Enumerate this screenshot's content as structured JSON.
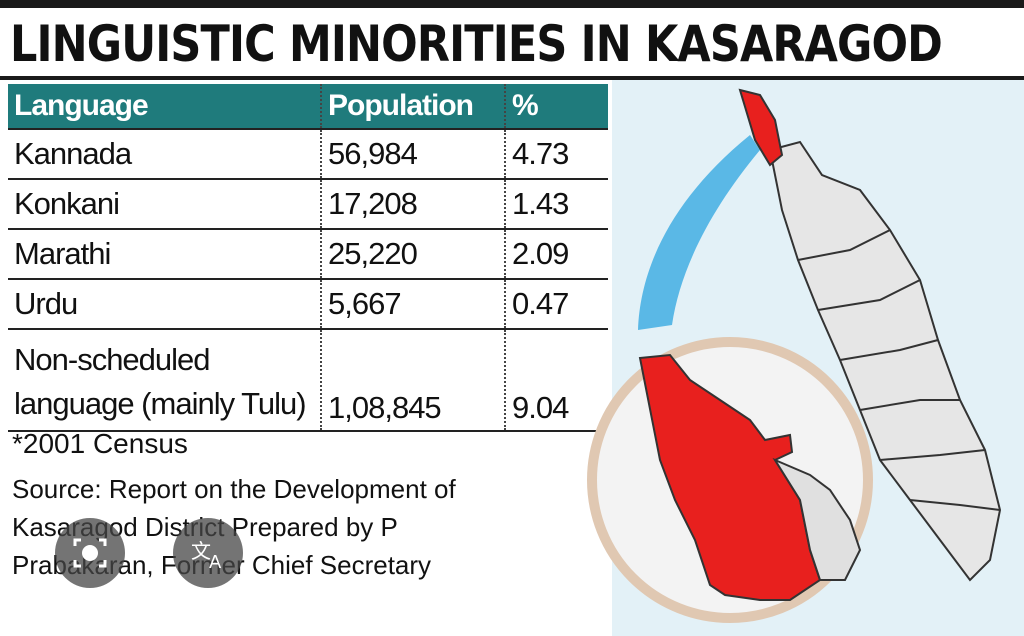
{
  "title": "LINGUISTIC MINORITIES IN KASARAGOD",
  "table": {
    "headers": {
      "language": "Language",
      "population": "Population",
      "percent": "%"
    },
    "rows": [
      {
        "language": "Kannada",
        "population": "56,984",
        "percent": "4.73"
      },
      {
        "language": "Konkani",
        "population": "17,208",
        "percent": "1.43"
      },
      {
        "language": "Marathi",
        "population": "25,220",
        "percent": "2.09"
      },
      {
        "language": "Urdu",
        "population": "5,667",
        "percent": "0.47"
      },
      {
        "language": "Non-scheduled language (mainly Tulu)",
        "population": "1,08,845",
        "percent": "9.04"
      }
    ]
  },
  "notes": {
    "census": "*2001 Census",
    "source": "Source: Report on the Development of Kasaragod District Prepared by P Prabakaran, Former Chief Secretary"
  },
  "overlay": {
    "left_icon": "lens-icon",
    "right_icon": "translate-icon"
  },
  "colors": {
    "header": "#1f7b7c",
    "highlight": "#e8201e",
    "map_fill": "#e6e6e6"
  }
}
